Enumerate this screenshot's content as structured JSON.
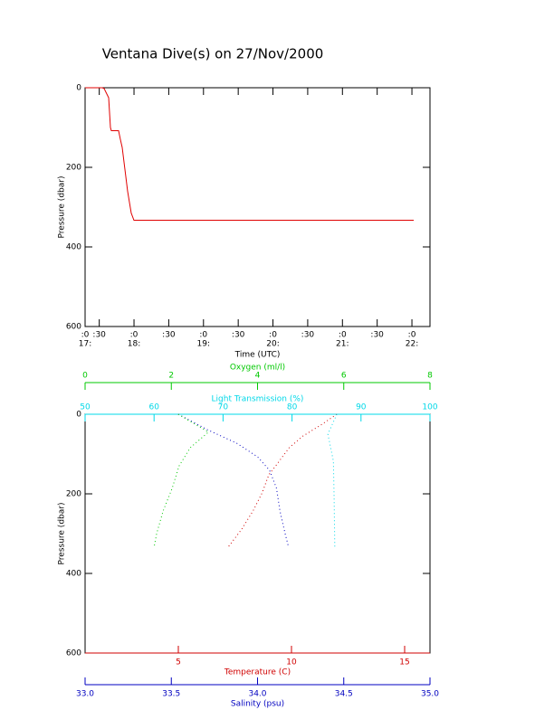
{
  "chart_data": [
    {
      "type": "line",
      "title": "Ventana Dive(s) on 27/Nov/2000",
      "xlabel": "Time (UTC)",
      "ylabel": "Pressure (dbar)",
      "x": [
        17.296,
        17.544,
        17.57,
        17.635,
        17.661,
        17.674,
        17.778,
        17.804,
        17.83,
        17.869,
        17.908,
        17.96,
        17.999,
        22.026
      ],
      "series": [
        {
          "color": "#e00000",
          "values": [
            0,
            0,
            2,
            25,
            100,
            108,
            108,
            130,
            150,
            205,
            260,
            315,
            333,
            333
          ]
        }
      ],
      "xlim": [
        17.296,
        22.26
      ],
      "xticks": [
        {
          "value": 17.296,
          "label": ":0"
        },
        {
          "value": 17.5,
          "label": ":30"
        },
        {
          "value": 18,
          "label": ":0"
        },
        {
          "value": 18.5,
          "label": ":30"
        },
        {
          "value": 19,
          "label": ":0"
        },
        {
          "value": 19.5,
          "label": ":30"
        },
        {
          "value": 20,
          "label": ":0"
        },
        {
          "value": 20.5,
          "label": ":30"
        },
        {
          "value": 21,
          "label": ":0"
        },
        {
          "value": 21.5,
          "label": ":30"
        },
        {
          "value": 22,
          "label": ":0"
        }
      ],
      "xticks_hour": [
        {
          "value": 17.296,
          "label": "17:"
        },
        {
          "value": 18,
          "label": "18:"
        },
        {
          "value": 19,
          "label": "19:"
        },
        {
          "value": 20,
          "label": "20:"
        },
        {
          "value": 21,
          "label": "21:"
        },
        {
          "value": 22,
          "label": "22:"
        }
      ],
      "ylim": [
        0,
        600
      ],
      "yticks": [
        0,
        200,
        400,
        600
      ],
      "y_inverted": true
    },
    {
      "type": "profile",
      "ylabel": "Pressure (dbar)",
      "ylim": [
        0,
        600
      ],
      "yticks": [
        0,
        200,
        400,
        600
      ],
      "y_inverted": true,
      "x_axes": [
        {
          "label": "Oxygen (ml/l)",
          "color": "#00c800",
          "position": "top",
          "xlim": [
            0,
            8
          ],
          "xticks": [
            0,
            2,
            4,
            6,
            8
          ]
        },
        {
          "label": "Light Transmission (%)",
          "color": "#00d8e8",
          "position": "top",
          "xlim": [
            50,
            100
          ],
          "xticks": [
            50,
            60,
            70,
            80,
            90,
            100
          ]
        },
        {
          "label": "Temperature (C)",
          "color": "#d00000",
          "position": "bottom",
          "xlim": [
            0.88,
            16.12
          ],
          "xticks": [
            5,
            10,
            15
          ]
        },
        {
          "label": "Salinity (psu)",
          "color": "#0000c0",
          "position": "bottom",
          "xlim": [
            33.0,
            35.0
          ],
          "xticks": [
            {
              "value": 33.0,
              "label": "33.0"
            },
            {
              "value": 33.5,
              "label": "33.5"
            },
            {
              "value": 34.0,
              "label": "34.0"
            },
            {
              "value": 34.5,
              "label": "34.5"
            },
            {
              "value": 35.0,
              "label": "35.0"
            }
          ]
        }
      ],
      "series": [
        {
          "x_axis": 2,
          "color": "#d00000",
          "pressure": [
            0,
            27,
            55,
            84,
            130,
            152,
            198,
            243,
            289,
            334
          ],
          "values": [
            12.0,
            11.3,
            10.5,
            9.9,
            9.3,
            9.0,
            8.7,
            8.3,
            7.8,
            7.2
          ]
        },
        {
          "x_axis": 3,
          "color": "#0000c0",
          "pressure": [
            0,
            39,
            73,
            107,
            141,
            186,
            243,
            300,
            334
          ],
          "values": [
            33.54,
            33.71,
            33.88,
            34.0,
            34.07,
            34.11,
            34.13,
            34.16,
            34.18
          ]
        },
        {
          "x_axis": 0,
          "color": "#00c800",
          "pressure": [
            0,
            45,
            84,
            130,
            186,
            243,
            300,
            334
          ],
          "values": [
            2.16,
            2.86,
            2.44,
            2.18,
            2.02,
            1.81,
            1.66,
            1.6
          ]
        },
        {
          "x_axis": 1,
          "color": "#00d8e8",
          "pressure": [
            0,
            50,
            118,
            209,
            334
          ],
          "values": [
            86.5,
            85.2,
            86.0,
            86.1,
            86.2
          ]
        }
      ]
    }
  ]
}
